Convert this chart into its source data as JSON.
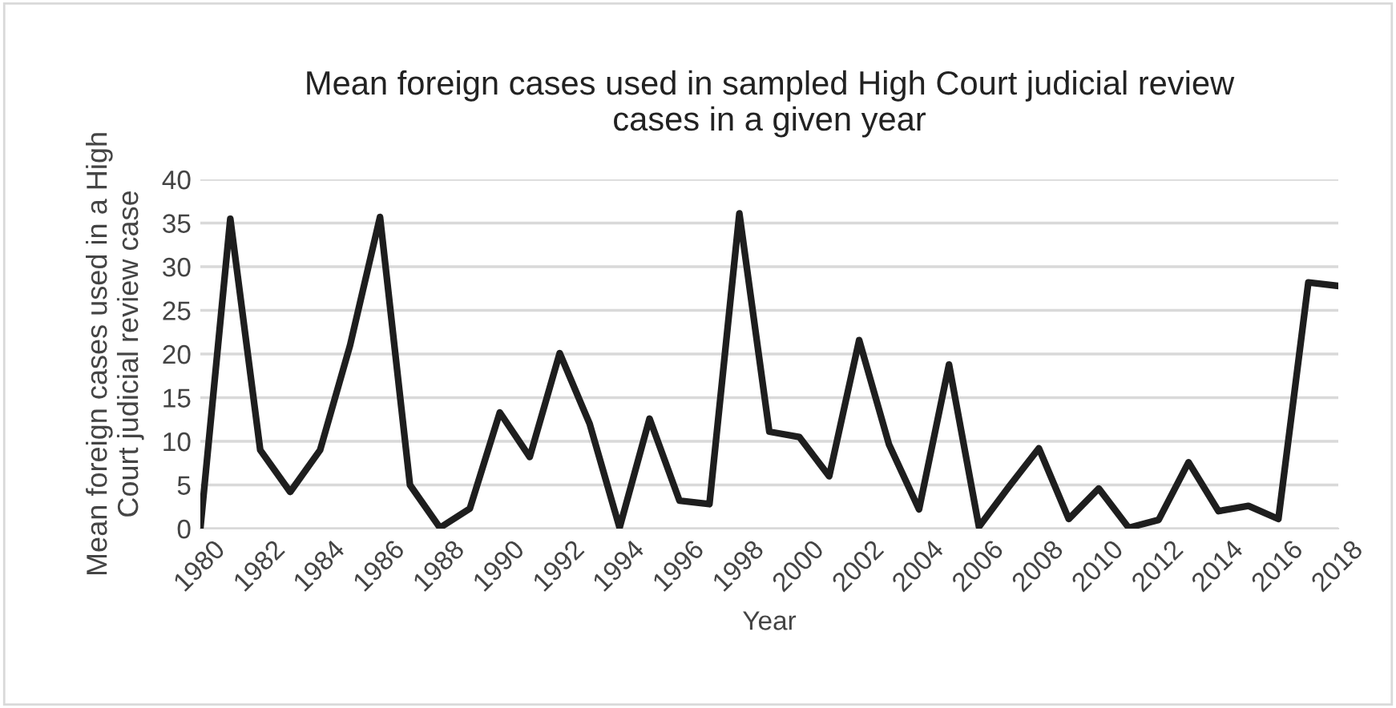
{
  "chart_data": {
    "type": "line",
    "title": "Mean foreign cases used in sampled High Court judicial review\ncases in a given year",
    "xlabel": "Year",
    "ylabel": "Mean foreign cases used in a High\nCourt judicial review case",
    "x": [
      1980,
      1981,
      1982,
      1983,
      1984,
      1985,
      1986,
      1987,
      1988,
      1989,
      1990,
      1991,
      1992,
      1993,
      1994,
      1995,
      1996,
      1997,
      1998,
      1999,
      2000,
      2001,
      2002,
      2003,
      2004,
      2005,
      2006,
      2007,
      2008,
      2009,
      2010,
      2011,
      2012,
      2013,
      2014,
      2015,
      2016,
      2017,
      2018
    ],
    "series": [
      {
        "color": "#1e1e1e",
        "values": [
          0,
          35.5,
          9,
          4.2,
          9,
          21,
          35.7,
          5,
          0.1,
          2.3,
          13.3,
          8.2,
          20.1,
          12,
          0.1,
          12.6,
          3.2,
          2.8,
          36.1,
          11.1,
          10.5,
          6,
          21.6,
          9.6,
          2.2,
          18.8,
          0.2,
          4.8,
          9.2,
          1.1,
          4.6,
          0.1,
          1,
          7.6,
          2,
          2.6,
          1.1,
          28.2,
          27.8
        ]
      }
    ],
    "xlim": [
      1980,
      2018
    ],
    "xticks": [
      1980,
      1982,
      1984,
      1986,
      1988,
      1990,
      1992,
      1994,
      1996,
      1998,
      2000,
      2002,
      2004,
      2006,
      2008,
      2010,
      2012,
      2014,
      2016,
      2018
    ],
    "ylim": [
      0,
      40
    ],
    "yticks": [
      0,
      5,
      10,
      15,
      20,
      25,
      30,
      35,
      40
    ],
    "grid": "y",
    "legend": false,
    "marker": "none",
    "line_style": "solid"
  }
}
